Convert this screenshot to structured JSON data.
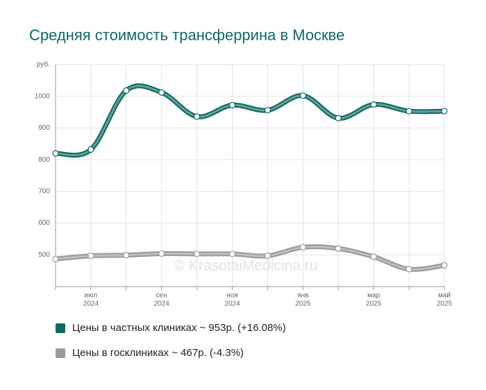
{
  "chart_data": {
    "type": "line",
    "title": "Средняя стоимость трансферрина в Москве",
    "watermark": "© KrasotaiMedicina.ru",
    "categories": [
      null,
      [
        "июл",
        "2024"
      ],
      null,
      [
        "сен",
        "2024"
      ],
      null,
      [
        "ноя",
        "2024"
      ],
      null,
      [
        "янв",
        "2025"
      ],
      null,
      [
        "мар",
        "2025"
      ],
      null,
      [
        "май",
        "2025"
      ]
    ],
    "series": [
      {
        "name": "Цены в частных клиниках ~ 953р. (+16.08%)",
        "color": "#0e6a63",
        "values": [
          820,
          832,
          1018,
          1012,
          936,
          972,
          956,
          1002,
          931,
          974,
          953,
          953
        ]
      },
      {
        "name": "Цены в госклиниках ~ 467р. (-4.3%)",
        "color": "#9a9a9a",
        "values": [
          487,
          497,
          499,
          504,
          503,
          503,
          497,
          524,
          520,
          494,
          455,
          467
        ]
      }
    ],
    "ylim": [
      400,
      1100
    ],
    "yticks": [
      500,
      600,
      700,
      800,
      900,
      1000,
      {
        "value": 1100,
        "label": "руб."
      }
    ],
    "grid": true
  }
}
